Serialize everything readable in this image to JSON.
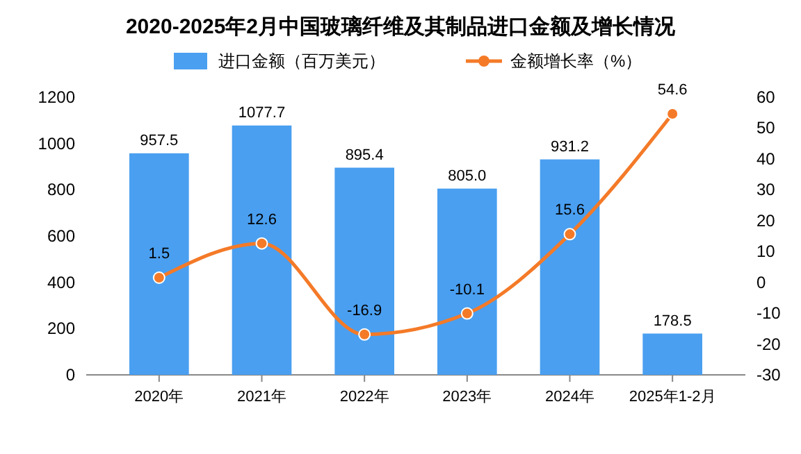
{
  "chart_data": {
    "type": "bar",
    "title": "2020-2025年2月中国玻璃纤维及其制品进口金额及增长情况",
    "categories": [
      "2020年",
      "2021年",
      "2022年",
      "2023年",
      "2024年",
      "2025年1-2月"
    ],
    "series": [
      {
        "name": "进口金额（百万美元）",
        "color": "#4a9ff0",
        "values": [
          957.5,
          1077.7,
          895.4,
          805.0,
          931.2,
          178.5
        ],
        "value_labels": [
          "957.5",
          "1077.7",
          "895.4",
          "805.0",
          "931.2",
          "178.5"
        ]
      },
      {
        "name": "金额增长率（%）",
        "type": "line",
        "axis": "y2",
        "color": "#f47a28",
        "values": [
          1.5,
          12.6,
          -16.9,
          -10.1,
          15.6,
          54.6
        ],
        "value_labels": [
          "1.5",
          "12.6",
          "-16.9",
          "-10.1",
          "15.6",
          "54.6"
        ]
      }
    ],
    "ylim": [
      0,
      1200
    ],
    "yticks": [
      0,
      200,
      400,
      600,
      800,
      1000,
      1200
    ],
    "y2lim": [
      -30,
      60
    ],
    "y2ticks": [
      -30,
      -20,
      -10,
      0,
      10,
      20,
      30,
      40,
      50,
      60
    ],
    "legend": "top",
    "marker": "circle",
    "grid": false
  }
}
